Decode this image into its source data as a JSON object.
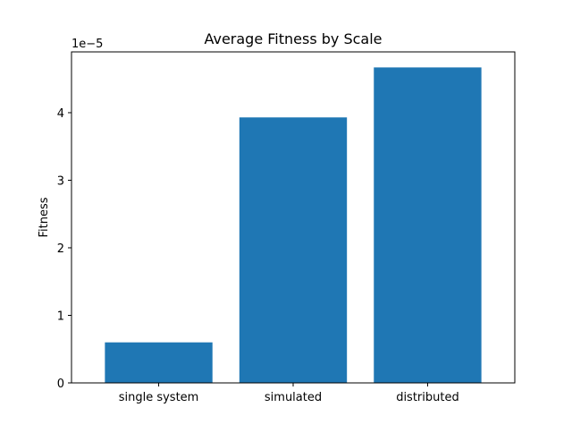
{
  "chart_data": {
    "type": "bar",
    "title": "Average Fitness by Scale",
    "xlabel": "",
    "ylabel": "Fitness",
    "categories": [
      "single system",
      "simulated",
      "distributed"
    ],
    "values": [
      6e-06,
      3.93e-05,
      4.67e-05
    ],
    "ylim": [
      0,
      4.9e-05
    ],
    "yscale_offset_label": "1e−5",
    "y_tick_values": [
      0,
      1e-05,
      2e-05,
      3e-05,
      4e-05
    ],
    "y_tick_labels": [
      "0",
      "1",
      "2",
      "3",
      "4"
    ],
    "bar_color": "#1f77b4",
    "grid": false,
    "legend": "none"
  }
}
